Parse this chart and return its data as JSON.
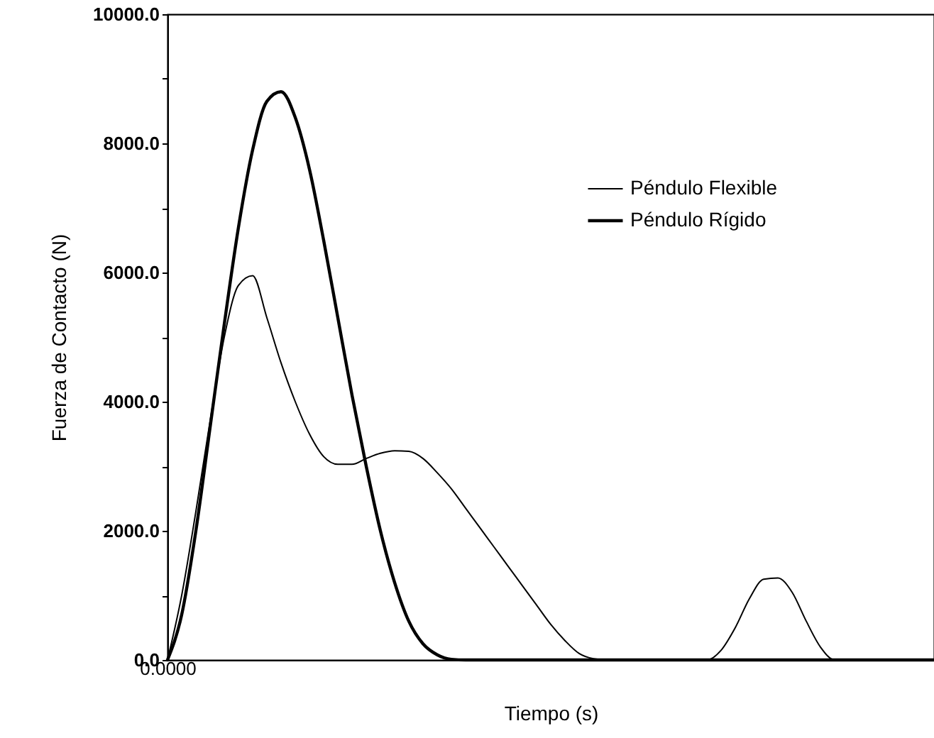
{
  "chart_data": {
    "type": "line",
    "xlabel": "Tiempo (s)",
    "ylabel": "Fuerza de Contacto (N)",
    "categories": [
      "0.0000",
      null,
      null,
      null,
      null,
      null,
      null,
      null,
      null,
      null,
      null,
      null,
      null,
      null,
      null,
      null,
      null,
      null,
      null,
      null,
      null,
      null,
      null,
      null,
      null,
      null,
      null,
      null,
      null,
      null,
      null,
      null,
      null,
      null,
      null,
      null,
      null,
      null,
      null,
      null,
      null,
      null,
      null,
      null,
      null,
      null,
      null,
      null,
      null,
      null,
      null,
      null,
      null,
      null,
      null
    ],
    "series": [
      {
        "name": "Péndulo Flexible",
        "color": "#000000",
        "values": [
          0,
          1000,
          2300,
          3700,
          5000,
          5800,
          5950,
          5300,
          4600,
          4000,
          3500,
          3150,
          3030,
          3030,
          3120,
          3200,
          3240,
          3230,
          3120,
          2900,
          2650,
          2350,
          2050,
          1750,
          1450,
          1150,
          850,
          550,
          300,
          100,
          20,
          0,
          0,
          0,
          0,
          0,
          0,
          0,
          0,
          150,
          500,
          950,
          1250,
          1270,
          1050,
          600,
          200,
          0,
          0,
          0,
          0,
          0,
          0,
          0,
          0
        ]
      },
      {
        "name": "Péndulo Rígido",
        "color": "#000000",
        "values": [
          0,
          700,
          2000,
          3600,
          5200,
          6700,
          7900,
          8650,
          8800,
          8400,
          7600,
          6500,
          5300,
          4100,
          3000,
          2000,
          1200,
          600,
          250,
          80,
          10,
          0,
          0,
          0,
          0,
          0,
          0,
          0,
          0,
          0,
          0,
          0,
          0,
          0,
          0,
          0,
          0,
          0,
          0,
          0,
          0,
          0,
          0,
          0,
          0,
          0,
          0,
          0,
          0,
          0,
          0,
          0,
          0,
          0,
          0
        ]
      }
    ],
    "ylim": [
      0,
      10000
    ],
    "yticks": [
      {
        "value": 0,
        "label": "0.0"
      },
      {
        "value": 1000,
        "label": null
      },
      {
        "value": 2000,
        "label": "2000.0"
      },
      {
        "value": 3000,
        "label": null
      },
      {
        "value": 4000,
        "label": "4000.0"
      },
      {
        "value": 5000,
        "label": null
      },
      {
        "value": 6000,
        "label": "6000.0"
      },
      {
        "value": 7000,
        "label": null
      },
      {
        "value": 8000,
        "label": "8000.0"
      },
      {
        "value": 9000,
        "label": null
      },
      {
        "value": 10000,
        "label": "10000.0"
      }
    ],
    "legend": "top right",
    "grid": false
  }
}
